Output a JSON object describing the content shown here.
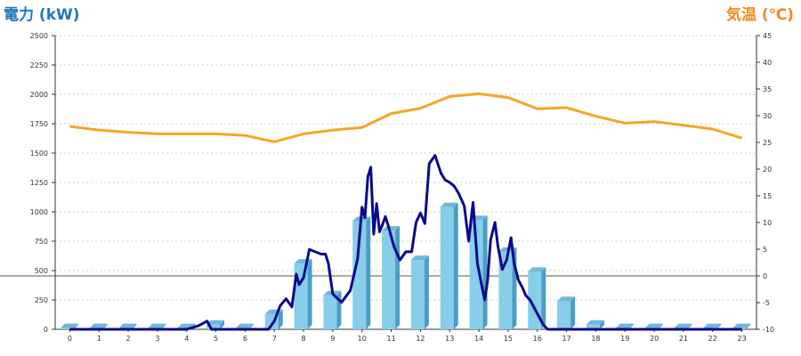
{
  "chart_data": {
    "type": "bar+line",
    "left_axis": {
      "label": "電力 (kW)",
      "ylim": [
        0,
        2500
      ],
      "ticks": [
        "0",
        "250",
        "500",
        "750",
        "1000",
        "1250",
        "1500",
        "1750",
        "2000",
        "2250",
        "2500"
      ]
    },
    "right_axis": {
      "label": "気温 (℃)",
      "ylim": [
        -10,
        45
      ],
      "ticks": [
        "-10",
        "-5",
        "0",
        "5",
        "10",
        "15",
        "20",
        "25",
        "30",
        "35",
        "40",
        "45"
      ]
    },
    "x_ticks": [
      "0",
      "1",
      "2",
      "3",
      "4",
      "5",
      "6",
      "7",
      "8",
      "9",
      "10",
      "11",
      "12",
      "13",
      "14",
      "15",
      "16",
      "17",
      "18",
      "19",
      "20",
      "21",
      "22",
      "23"
    ],
    "grid": true,
    "colors": {
      "bars": "#87ceeb",
      "bars_side": "#4a9ec4",
      "power_line": "#0a0a8c",
      "temperature_line": "#f5a623",
      "left_label": "#1f78c0",
      "right_label": "#f08c1e"
    },
    "bars": {
      "name": "",
      "categories": [
        0,
        1,
        2,
        3,
        4,
        5,
        6,
        7,
        8,
        9,
        10,
        11,
        12,
        13,
        14,
        15,
        16,
        17,
        18,
        19,
        20,
        21,
        22,
        23
      ],
      "values": [
        10,
        10,
        10,
        10,
        10,
        40,
        10,
        130,
        560,
        290,
        920,
        840,
        590,
        1040,
        930,
        660,
        490,
        240,
        40,
        10,
        10,
        10,
        10,
        10
      ]
    },
    "power_line": {
      "name": "",
      "x": [
        0,
        1,
        2,
        3,
        4,
        4.4,
        4.7,
        4.85,
        5.0,
        6.0,
        6.5,
        6.8,
        7.0,
        7.2,
        7.4,
        7.6,
        7.75,
        7.85,
        8.0,
        8.2,
        8.4,
        8.6,
        8.75,
        8.85,
        9.0,
        9.3,
        9.6,
        9.85,
        10.0,
        10.1,
        10.2,
        10.3,
        10.4,
        10.5,
        10.6,
        10.7,
        10.8,
        10.9,
        11.1,
        11.3,
        11.5,
        11.7,
        11.85,
        12.0,
        12.15,
        12.3,
        12.5,
        12.7,
        12.85,
        13.0,
        13.15,
        13.3,
        13.5,
        13.65,
        13.8,
        13.95,
        14.1,
        14.2,
        14.3,
        14.4,
        14.55,
        14.65,
        14.8,
        14.95,
        15.1,
        15.2,
        15.35,
        15.5,
        15.6,
        15.75,
        15.9,
        16.05,
        16.2,
        16.35,
        16.5,
        16.7,
        17.0,
        17.5,
        17.8,
        18.0,
        18.5,
        19,
        20,
        21,
        22,
        23
      ],
      "values": [
        0,
        0,
        0,
        0,
        0,
        30,
        70,
        0,
        0,
        0,
        0,
        0,
        70,
        200,
        260,
        190,
        470,
        380,
        440,
        680,
        660,
        640,
        640,
        560,
        300,
        230,
        330,
        600,
        1040,
        950,
        1300,
        1380,
        810,
        1070,
        830,
        890,
        960,
        880,
        700,
        590,
        660,
        660,
        910,
        990,
        900,
        1410,
        1480,
        1330,
        1270,
        1250,
        1220,
        1160,
        1050,
        750,
        1080,
        560,
        370,
        250,
        420,
        760,
        910,
        710,
        510,
        590,
        780,
        570,
        420,
        350,
        290,
        250,
        180,
        110,
        40,
        0,
        0,
        0,
        0,
        0,
        0,
        0,
        0,
        0,
        0,
        0,
        0,
        0
      ]
    },
    "temperature_line": {
      "name": "",
      "x": [
        0,
        1,
        2,
        3,
        4,
        5,
        6,
        7,
        8,
        9,
        10,
        11,
        12,
        13,
        14,
        15,
        16,
        17,
        18,
        19,
        20,
        21,
        22,
        23
      ],
      "values": [
        28,
        27.3,
        26.9,
        26.6,
        26.6,
        26.6,
        26.3,
        25.1,
        26.6,
        27.3,
        27.8,
        30.4,
        31.4,
        33.6,
        34.1,
        33.4,
        31.3,
        31.5,
        29.9,
        28.6,
        28.9,
        28.2,
        27.5,
        25.8
      ]
    },
    "reference_line": {
      "axis": "right",
      "value": 0
    }
  }
}
